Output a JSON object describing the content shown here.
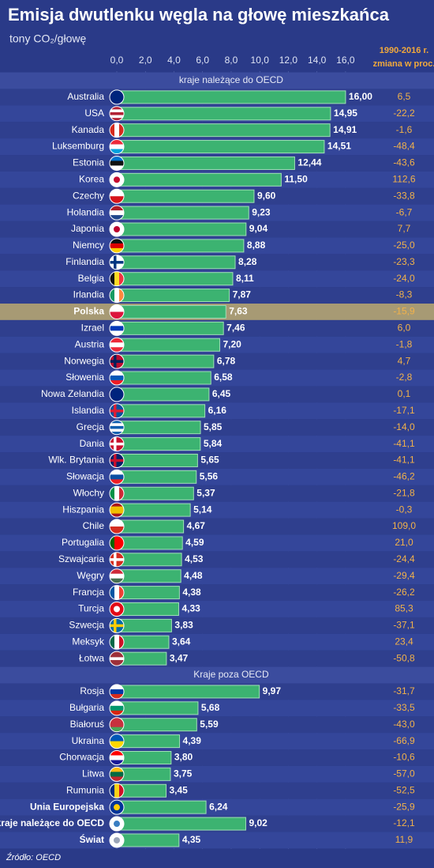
{
  "chart_data": {
    "type": "bar",
    "orientation": "horizontal",
    "title": "Emisja dwutlenku węgla na głowę mieszkańca",
    "subtitle": "tony CO₂/głowę",
    "change_header": [
      "1990-2016 r.",
      "zmiana w proc."
    ],
    "source": "Źródło: OECD",
    "color": "#3cb371",
    "xlim": [
      0,
      17
    ],
    "xticks": [
      {
        "value": 0,
        "label": "0,0"
      },
      {
        "value": 2,
        "label": "2,0"
      },
      {
        "value": 4,
        "label": "4,0"
      },
      {
        "value": 6,
        "label": "6,0"
      },
      {
        "value": 8,
        "label": "8,0"
      },
      {
        "value": 10,
        "label": "10,0"
      },
      {
        "value": 12,
        "label": "12,0"
      },
      {
        "value": 14,
        "label": "14,0"
      },
      {
        "value": 16,
        "label": "16,0"
      }
    ],
    "grid": true,
    "highlight": "Polska",
    "groups": [
      {
        "name": "kraje należące do OECD",
        "bold": false,
        "categories": [
          "Australia",
          "USA",
          "Kanada",
          "Luksemburg",
          "Estonia",
          "Korea",
          "Czechy",
          "Holandia",
          "Japonia",
          "Niemcy",
          "Finlandia",
          "Belgia",
          "Irlandia",
          "Polska",
          "Izrael",
          "Austria",
          "Norwegia",
          "Słowenia",
          "Nowa Zelandia",
          "Islandia",
          "Grecja",
          "Dania",
          "Wlk. Brytania",
          "Słowacja",
          "Włochy",
          "Hiszpania",
          "Chile",
          "Portugalia",
          "Szwajcaria",
          "Węgry",
          "Francja",
          "Turcja",
          "Szwecja",
          "Meksyk",
          "Łotwa"
        ],
        "values": [
          16.0,
          14.95,
          14.91,
          14.51,
          12.44,
          11.5,
          9.6,
          9.23,
          9.04,
          8.88,
          8.28,
          8.11,
          7.87,
          7.63,
          7.46,
          7.2,
          6.78,
          6.58,
          6.45,
          6.16,
          5.85,
          5.84,
          5.65,
          5.56,
          5.37,
          5.14,
          4.67,
          4.59,
          4.53,
          4.48,
          4.38,
          4.33,
          3.83,
          3.64,
          3.47
        ],
        "value_labels": [
          "16,00",
          "14,95",
          "14,91",
          "14,51",
          "12,44",
          "11,50",
          "9,60",
          "9,23",
          "9,04",
          "8,88",
          "8,28",
          "8,11",
          "7,87",
          "7,63",
          "7,46",
          "7,20",
          "6,78",
          "6,58",
          "6,45",
          "6,16",
          "5,85",
          "5,84",
          "5,65",
          "5,56",
          "5,37",
          "5,14",
          "4,67",
          "4,59",
          "4,53",
          "4,48",
          "4,38",
          "4,33",
          "3,83",
          "3,64",
          "3,47"
        ],
        "changes": [
          6.5,
          -22.2,
          -1.6,
          -48.4,
          -43.6,
          112.6,
          -33.8,
          -6.7,
          7.7,
          -25.0,
          -23.3,
          -24.0,
          -8.3,
          -15.9,
          6.0,
          -1.8,
          4.7,
          -2.8,
          0.1,
          -17.1,
          -14.0,
          -41.1,
          -41.1,
          -46.2,
          -21.8,
          -0.3,
          109.0,
          21.0,
          -24.4,
          -29.4,
          -26.2,
          85.3,
          -37.1,
          23.4,
          -50.8
        ],
        "change_labels": [
          "6,5",
          "-22,2",
          "-1,6",
          "-48,4",
          "-43,6",
          "112,6",
          "-33,8",
          "-6,7",
          "7,7",
          "-25,0",
          "-23,3",
          "-24,0",
          "-8,3",
          "-15,9",
          "6,0",
          "-1,8",
          "4,7",
          "-2,8",
          "0,1",
          "-17,1",
          "-14,0",
          "-41,1",
          "-41,1",
          "-46,2",
          "-21,8",
          "-0,3",
          "109,0",
          "21,0",
          "-24,4",
          "-29,4",
          "-26,2",
          "85,3",
          "-37,1",
          "23,4",
          "-50,8"
        ]
      },
      {
        "name": "Kraje poza OECD",
        "bold": false,
        "categories": [
          "Rosja",
          "Bułgaria",
          "Białoruś",
          "Ukraina",
          "Chorwacja",
          "Litwa",
          "Rumunia"
        ],
        "values": [
          9.97,
          5.68,
          5.59,
          4.39,
          3.8,
          3.75,
          3.45
        ],
        "value_labels": [
          "9,97",
          "5,68",
          "5,59",
          "4,39",
          "3,80",
          "3,75",
          "3,45"
        ],
        "changes": [
          -31.7,
          -33.5,
          -43.0,
          -66.9,
          -10.6,
          -57.0,
          -52.5
        ],
        "change_labels": [
          "-31,7",
          "-33,5",
          "-43,0",
          "-66,9",
          "-10,6",
          "-57,0",
          "-52,5"
        ]
      },
      {
        "bold": true,
        "categories": [
          "Unia Europejska",
          "kraje należące do OECD",
          "Świat"
        ],
        "values": [
          6.24,
          9.02,
          4.35
        ],
        "value_labels": [
          "6,24",
          "9,02",
          "4,35"
        ],
        "changes": [
          -25.9,
          -12.1,
          11.9
        ],
        "change_labels": [
          "-25,9",
          "-12,1",
          "11,9"
        ]
      }
    ]
  }
}
